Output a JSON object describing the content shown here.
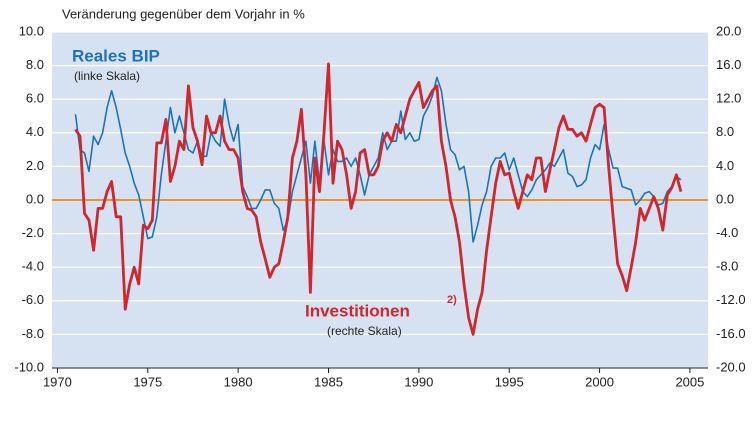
{
  "chart_data": {
    "type": "line",
    "title": "Veränderung gegenüber dem Vorjahr in %",
    "annotations": {
      "gdp": "Reales BIP",
      "gdp_scale": "(linke Skala)",
      "inv": "Investitionen",
      "inv_note": "2)",
      "inv_scale": "(rechte Skala)"
    },
    "x": [
      1971,
      1971.25,
      1971.5,
      1971.75,
      1972,
      1972.25,
      1972.5,
      1972.75,
      1973,
      1973.25,
      1973.5,
      1973.75,
      1974,
      1974.25,
      1974.5,
      1974.75,
      1975,
      1975.25,
      1975.5,
      1975.75,
      1976,
      1976.25,
      1976.5,
      1976.75,
      1977,
      1977.25,
      1977.5,
      1977.75,
      1978,
      1978.25,
      1978.5,
      1978.75,
      1979,
      1979.25,
      1979.5,
      1979.75,
      1980,
      1980.25,
      1980.5,
      1980.75,
      1981,
      1981.25,
      1981.5,
      1981.75,
      1982,
      1982.25,
      1982.5,
      1982.75,
      1983,
      1983.25,
      1983.5,
      1983.75,
      1984,
      1984.25,
      1984.5,
      1984.75,
      1985,
      1985.25,
      1985.5,
      1985.75,
      1986,
      1986.25,
      1986.5,
      1986.75,
      1987,
      1987.25,
      1987.5,
      1987.75,
      1988,
      1988.25,
      1988.5,
      1988.75,
      1989,
      1989.25,
      1989.5,
      1989.75,
      1990,
      1990.25,
      1990.5,
      1990.75,
      1991,
      1991.25,
      1991.5,
      1991.75,
      1992,
      1992.25,
      1992.5,
      1992.75,
      1993,
      1993.25,
      1993.5,
      1993.75,
      1994,
      1994.25,
      1994.5,
      1994.75,
      1995,
      1995.25,
      1995.5,
      1995.75,
      1996,
      1996.25,
      1996.5,
      1996.75,
      1997,
      1997.25,
      1997.5,
      1997.75,
      1998,
      1998.25,
      1998.5,
      1998.75,
      1999,
      1999.25,
      1999.5,
      1999.75,
      2000,
      2000.25,
      2000.5,
      2000.75,
      2001,
      2001.25,
      2001.5,
      2001.75,
      2002,
      2002.25,
      2002.5,
      2002.75,
      2003,
      2003.25,
      2003.5,
      2003.75,
      2004,
      2004.25,
      2004.5,
      2004.75
    ],
    "series": [
      {
        "name": "Reales BIP",
        "color": "#1f72b8",
        "axis": "y",
        "values": [
          5.1,
          3.0,
          2.8,
          1.7,
          3.8,
          3.3,
          4.0,
          5.5,
          6.5,
          5.5,
          4.2,
          2.8,
          2.0,
          1.0,
          0.3,
          -1.0,
          -2.3,
          -2.2,
          -1.0,
          1.5,
          3.5,
          5.5,
          4.0,
          5.0,
          4.0,
          3.0,
          2.8,
          3.5,
          2.6,
          2.6,
          4.0,
          3.5,
          3.2,
          6.0,
          4.5,
          3.5,
          4.5,
          0.8,
          0.2,
          -0.5,
          -0.5,
          0.0,
          0.6,
          0.6,
          -0.2,
          -0.5,
          -1.8,
          -1.2,
          0.5,
          1.5,
          2.5,
          3.5,
          1.0,
          3.5,
          1.0,
          3.5,
          1.5,
          3.0,
          2.3,
          2.3,
          2.5,
          2.0,
          2.5,
          1.5,
          0.3,
          1.5,
          2.0,
          2.5,
          4.0,
          3.0,
          3.5,
          3.5,
          5.3,
          3.6,
          4.0,
          3.5,
          3.6,
          5.0,
          5.5,
          6.2,
          7.3,
          6.5,
          4.5,
          3.0,
          2.7,
          1.8,
          2.0,
          0.5,
          -2.5,
          -1.5,
          -0.3,
          0.5,
          2.0,
          2.5,
          2.5,
          2.8,
          1.8,
          2.5,
          1.5,
          0.5,
          0.2,
          0.6,
          1.2,
          1.5,
          1.8,
          2.2,
          2.0,
          2.5,
          3.0,
          1.6,
          1.4,
          0.8,
          0.9,
          1.2,
          2.5,
          3.3,
          3.0,
          4.5,
          3.0,
          1.9,
          1.9,
          0.8,
          0.7,
          0.6,
          -0.3,
          0.0,
          0.4,
          0.5,
          0.2,
          -0.3,
          -0.2,
          0.5,
          0.8,
          1.4,
          1.2,
          null
        ]
      },
      {
        "name": "Investitionen",
        "color": "#d0262e",
        "axis": "y2",
        "values": [
          8.4,
          7.6,
          -1.6,
          -2.4,
          -6,
          -1,
          -1,
          1,
          2.2,
          -2,
          -2,
          -13,
          -10,
          -8,
          -10,
          -3,
          -3.4,
          -2.4,
          6.8,
          6.8,
          9.6,
          2.2,
          4,
          7,
          6,
          13.6,
          8.6,
          7,
          4.2,
          10,
          8,
          8,
          10,
          7,
          6,
          6,
          5,
          1,
          -1,
          -1.2,
          -2,
          -5,
          -7,
          -9.2,
          -8,
          -7.6,
          -5,
          -2,
          5,
          7,
          10.8,
          3,
          -11,
          5,
          1,
          8,
          16.2,
          2,
          7,
          6,
          3,
          -1,
          1,
          5.6,
          6,
          3,
          3,
          4,
          7,
          8,
          7,
          9,
          8,
          10,
          12,
          13,
          14,
          11,
          12,
          13,
          13.6,
          7,
          4,
          0,
          -2,
          -5,
          -10,
          -14,
          -16,
          -13,
          -11,
          -6,
          -2,
          2,
          4.6,
          3,
          3.2,
          1,
          -1,
          1,
          3,
          2.4,
          5,
          5,
          1,
          3.6,
          6,
          8.6,
          10,
          8.4,
          8.4,
          7.6,
          8,
          7,
          9,
          11,
          11.4,
          11,
          4,
          -2,
          -7.6,
          -9,
          -10.8,
          -8,
          -5,
          -1,
          -2.4,
          -1,
          0.4,
          -1,
          -3.6,
          0.6,
          1.5,
          3,
          1,
          null
        ]
      }
    ],
    "xlim": [
      1969.7,
      2006
    ],
    "xticks": [
      1970,
      1975,
      1980,
      1985,
      1990,
      1995,
      2000,
      2005
    ],
    "ylim": [
      -10,
      10
    ],
    "yticks": [
      {
        "value": 10,
        "label": "10.0"
      },
      {
        "value": 8,
        "label": "8.0"
      },
      {
        "value": 6,
        "label": "6.0"
      },
      {
        "value": 4,
        "label": "4.0"
      },
      {
        "value": 2,
        "label": "2.0"
      },
      {
        "value": 0,
        "label": "0.0"
      },
      {
        "value": -2,
        "label": "-2.0"
      },
      {
        "value": -4,
        "label": "-4.0"
      },
      {
        "value": -6,
        "label": "-6.0"
      },
      {
        "value": -8,
        "label": "-8.0"
      },
      {
        "value": -10,
        "label": "-10.0"
      }
    ],
    "y2lim": [
      -20,
      20
    ],
    "y2ticks": [
      {
        "value": 20,
        "label": "20.0"
      },
      {
        "value": 16,
        "label": "16.0"
      },
      {
        "value": 12,
        "label": "12.0"
      },
      {
        "value": 8,
        "label": "8.0"
      },
      {
        "value": 4,
        "label": "4.0"
      },
      {
        "value": 0,
        "label": "0.0"
      },
      {
        "value": -4,
        "label": "-4.0"
      },
      {
        "value": -8,
        "label": "-8.0"
      },
      {
        "value": -12,
        "label": "-12.0"
      },
      {
        "value": -16,
        "label": "-16.0"
      },
      {
        "value": -20,
        "label": "-20.0"
      }
    ],
    "grid": true,
    "zero_line_color": "#f0922b",
    "background": "#d6e2f2"
  }
}
